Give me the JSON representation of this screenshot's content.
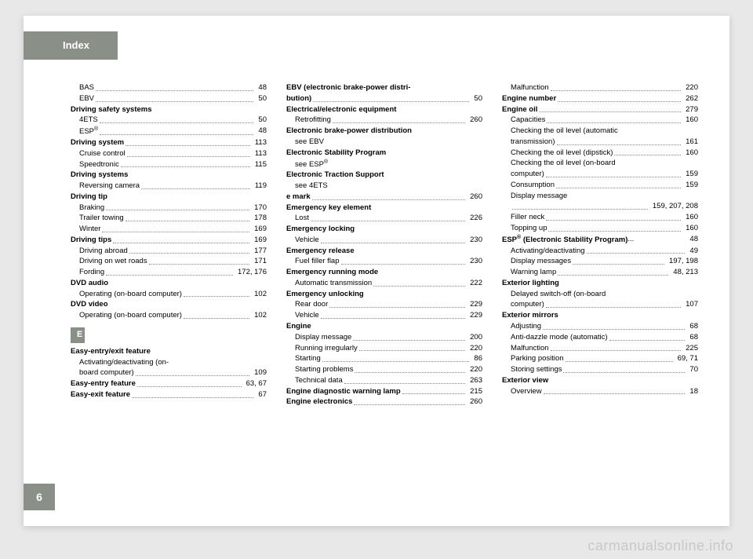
{
  "header": {
    "title": "Index"
  },
  "pagenum": "6",
  "watermark": "carmanualsonline.info",
  "section_e": "E",
  "entries": [
    {
      "t": "sub",
      "label": "BAS",
      "page": "48"
    },
    {
      "t": "sub",
      "label": "EBV",
      "page": "50"
    },
    {
      "t": "head",
      "label": "Driving safety systems"
    },
    {
      "t": "sub",
      "label": "4ETS",
      "page": "50"
    },
    {
      "t": "sub",
      "label": "ESP®",
      "page": "48"
    },
    {
      "t": "boldline",
      "label": "Driving system",
      "page": "113"
    },
    {
      "t": "sub",
      "label": "Cruise control",
      "page": "113"
    },
    {
      "t": "sub",
      "label": "Speedtronic",
      "page": "115"
    },
    {
      "t": "head",
      "label": "Driving systems"
    },
    {
      "t": "sub",
      "label": "Reversing camera",
      "page": "119"
    },
    {
      "t": "head",
      "label": "Driving tip"
    },
    {
      "t": "sub",
      "label": "Braking",
      "page": "170"
    },
    {
      "t": "sub",
      "label": "Trailer towing",
      "page": "178"
    },
    {
      "t": "sub",
      "label": "Winter",
      "page": "169"
    },
    {
      "t": "boldline",
      "label": "Driving tips",
      "page": "169"
    },
    {
      "t": "sub",
      "label": "Driving abroad ",
      "page": "177"
    },
    {
      "t": "sub",
      "label": "Driving on wet roads ",
      "page": "171"
    },
    {
      "t": "sub",
      "label": "Fording ",
      "page": "172, 176"
    },
    {
      "t": "head",
      "label": "DVD audio"
    },
    {
      "t": "sub",
      "label": "Operating (on-board computer)",
      "page": "102"
    },
    {
      "t": "head",
      "label": "DVD video"
    },
    {
      "t": "sub",
      "label": "Operating (on-board computer)",
      "page": "102"
    },
    {
      "t": "section"
    },
    {
      "t": "head",
      "label": "Easy-entry/exit feature"
    },
    {
      "t": "sub-nb",
      "label": "Activating/deactivating (on-"
    },
    {
      "t": "sub",
      "label": "board computer)",
      "page": "109"
    },
    {
      "t": "boldline",
      "label": "Easy-entry feature",
      "page": "63, 67"
    },
    {
      "t": "boldline",
      "label": "Easy-exit feature",
      "page": "67"
    },
    {
      "t": "head-nb",
      "label": "EBV (electronic brake-power distri-"
    },
    {
      "t": "boldcont",
      "label": "bution)",
      "page": "50"
    },
    {
      "t": "head",
      "label": "Electrical/electronic equipment"
    },
    {
      "t": "sub",
      "label": "Retrofitting",
      "page": "260"
    },
    {
      "t": "head",
      "label": "Electronic brake-power distribution"
    },
    {
      "t": "sub-plain",
      "label": "see EBV"
    },
    {
      "t": "head",
      "label": "Electronic Stability Program"
    },
    {
      "t": "sub-plain",
      "label": "see ESP®"
    },
    {
      "t": "head",
      "label": "Electronic Traction Support"
    },
    {
      "t": "sub-plain",
      "label": "see 4ETS"
    },
    {
      "t": "boldline",
      "label": "e mark",
      "page": "260"
    },
    {
      "t": "head",
      "label": "Emergency key element"
    },
    {
      "t": "sub",
      "label": "Lost",
      "page": "226"
    },
    {
      "t": "head",
      "label": "Emergency locking"
    },
    {
      "t": "sub",
      "label": "Vehicle",
      "page": "230"
    },
    {
      "t": "head",
      "label": "Emergency release"
    },
    {
      "t": "sub",
      "label": "Fuel filler flap",
      "page": "230"
    },
    {
      "t": "head",
      "label": "Emergency running mode"
    },
    {
      "t": "sub",
      "label": "Automatic transmission",
      "page": "222"
    },
    {
      "t": "head",
      "label": "Emergency unlocking"
    },
    {
      "t": "sub",
      "label": "Rear door",
      "page": "229"
    },
    {
      "t": "sub",
      "label": "Vehicle",
      "page": "229"
    },
    {
      "t": "head",
      "label": "Engine"
    },
    {
      "t": "sub",
      "label": "Display message",
      "page": "200"
    },
    {
      "t": "sub",
      "label": "Running irregularly",
      "page": "220"
    },
    {
      "t": "sub",
      "label": "Starting",
      "page": "86"
    },
    {
      "t": "sub",
      "label": "Starting problems",
      "page": "220"
    },
    {
      "t": "sub",
      "label": "Technical data",
      "page": "263"
    },
    {
      "t": "boldline",
      "label": "Engine diagnostic warning lamp",
      "page": "215"
    },
    {
      "t": "boldline",
      "label": "Engine electronics",
      "page": "260"
    },
    {
      "t": "sub",
      "label": "Malfunction",
      "page": "220"
    },
    {
      "t": "boldline",
      "label": "Engine number",
      "page": "262"
    },
    {
      "t": "boldline",
      "label": "Engine oil ",
      "page": "279"
    },
    {
      "t": "sub",
      "label": "Capacities",
      "page": "160"
    },
    {
      "t": "sub-nb",
      "label": "Checking the oil level (automatic"
    },
    {
      "t": "sub",
      "label": "transmission)",
      "page": "161"
    },
    {
      "t": "sub",
      "label": "Checking the oil level (dipstick)",
      "page": "160"
    },
    {
      "t": "sub-nb",
      "label": "Checking the oil level (on-board"
    },
    {
      "t": "sub",
      "label": "computer)",
      "page": "159"
    },
    {
      "t": "sub",
      "label": "Consumption ",
      "page": "159"
    },
    {
      "t": "sub-nb",
      "label": "Display message"
    },
    {
      "t": "sub",
      "label": "",
      "page": "159, 207, 208"
    },
    {
      "t": "sub",
      "label": "Filler neck",
      "page": "160"
    },
    {
      "t": "sub",
      "label": "Topping up",
      "page": "160"
    },
    {
      "t": "boldline",
      "label": "ESP® (Electronic Stability Program)",
      "page": "48",
      "nodots": true
    },
    {
      "t": "sub",
      "label": "Activating/deactivating",
      "page": "49"
    },
    {
      "t": "sub",
      "label": "Display messages",
      "page": "197, 198"
    },
    {
      "t": "sub",
      "label": "Warning lamp",
      "page": "48, 213"
    },
    {
      "t": "head",
      "label": "Exterior lighting"
    },
    {
      "t": "sub-nb",
      "label": "Delayed switch-off (on-board"
    },
    {
      "t": "sub",
      "label": "computer)",
      "page": "107"
    },
    {
      "t": "head",
      "label": "Exterior mirrors"
    },
    {
      "t": "sub",
      "label": "Adjusting",
      "page": "68"
    },
    {
      "t": "sub",
      "label": "Anti-dazzle mode (automatic)",
      "page": "68"
    },
    {
      "t": "sub",
      "label": "Malfunction",
      "page": "225"
    },
    {
      "t": "sub",
      "label": "Parking position",
      "page": "69, 71"
    },
    {
      "t": "sub",
      "label": "Storing settings",
      "page": "70"
    },
    {
      "t": "head",
      "label": "Exterior view"
    },
    {
      "t": "sub",
      "label": "Overview",
      "page": "18"
    }
  ]
}
